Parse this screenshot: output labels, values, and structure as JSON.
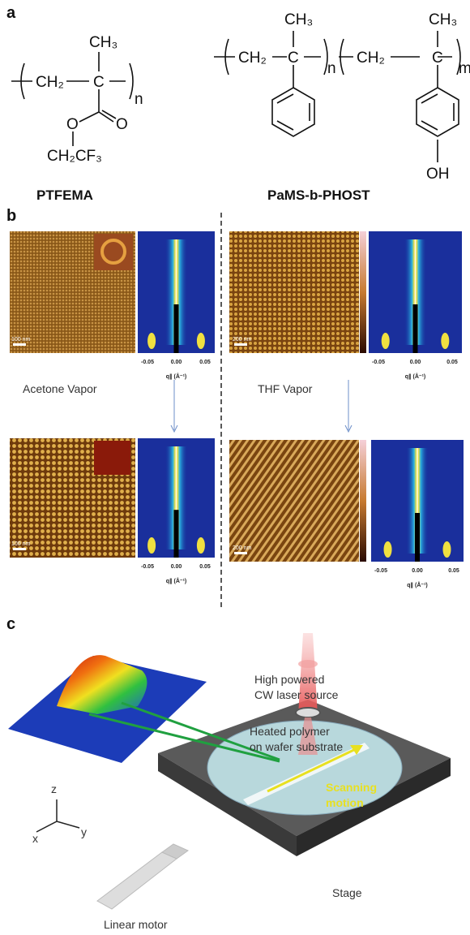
{
  "panel_a": {
    "label": "a",
    "ptfema": {
      "ch3": "CH₃",
      "ch2": "CH₂",
      "c": "C",
      "n": "n",
      "o_ester": "O",
      "o_carbonyl": "O",
      "side_chain": "CH₂CF₃",
      "name": "PTFEMA"
    },
    "pams_b_phost": {
      "ch3_1": "CH₃",
      "ch2_1": "CH₂",
      "c_1": "C",
      "n": "n",
      "ch3_2": "CH₃",
      "ch2_2": "CH₂",
      "c_2": "C",
      "m": "m",
      "oh": "OH",
      "name": "PaMS-b-PHOST"
    }
  },
  "panel_b": {
    "label": "b",
    "left": {
      "treatment": "Acetone Vapor",
      "before": {
        "scale_bar": "100 nm",
        "ticks": [
          "-0.05",
          "0.00",
          "0.05"
        ],
        "axis_label": "q∥ (Å⁻¹)"
      },
      "after": {
        "scale_bar": "100 nm",
        "ticks": [
          "-0.05",
          "0.00",
          "0.05"
        ],
        "axis_label": "q∥ (Å⁻¹)"
      }
    },
    "right": {
      "treatment": "THF Vapor",
      "before": {
        "scale_bar": "200 nm",
        "ticks": [
          "-0.05",
          "0.00",
          "0.05"
        ],
        "axis_label": "q∥ (Å⁻¹)"
      },
      "after": {
        "scale_bar": "200 nm",
        "ticks": [
          "-0.05",
          "0.00",
          "0.05"
        ],
        "axis_label": "q∥ (Å⁻¹)"
      }
    }
  },
  "panel_c": {
    "label": "c",
    "laser": [
      "High powered",
      "CW laser source"
    ],
    "sample": [
      "Heated polymer",
      "on wafer substrate"
    ],
    "scan": [
      "Scanning",
      "motion"
    ],
    "stage": "Stage",
    "motor": "Linear motor",
    "axes": {
      "z": "z",
      "x": "x",
      "y": "y"
    }
  }
}
